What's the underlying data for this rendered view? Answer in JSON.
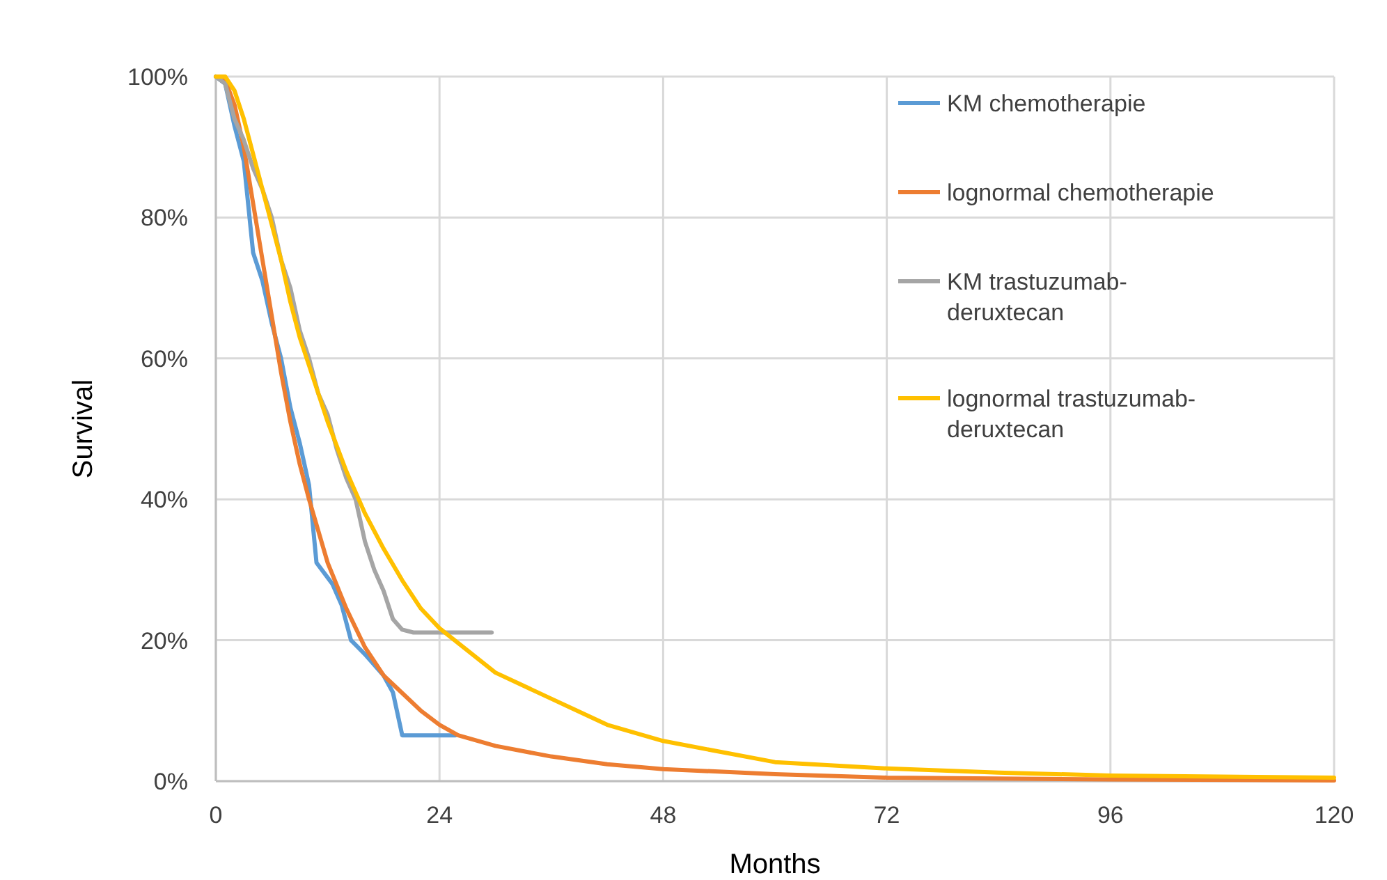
{
  "chart_data": {
    "type": "line",
    "xlabel": "Months",
    "ylabel": "Survival",
    "xlim": [
      0,
      120
    ],
    "xticks": [
      0,
      24,
      48,
      72,
      96,
      120
    ],
    "ylim": [
      0,
      100
    ],
    "yticks": [
      {
        "value": 0,
        "label": "0%"
      },
      {
        "value": 20,
        "label": "20%"
      },
      {
        "value": 40,
        "label": "40%"
      },
      {
        "value": 60,
        "label": "60%"
      },
      {
        "value": 80,
        "label": "80%"
      },
      {
        "value": 100,
        "label": "100%"
      }
    ],
    "grid": true,
    "legend": "top right",
    "marker": "none",
    "line_style": "solid",
    "series": [
      {
        "name": "KM chemotherapie",
        "color": "#5b9bd5",
        "x": [
          0,
          1,
          2,
          3,
          4,
          5,
          6,
          7,
          8,
          9,
          10,
          10.8,
          12.5,
          13.5,
          14.5,
          16,
          18,
          19,
          20,
          25.7
        ],
        "values": [
          100,
          99,
          93,
          88,
          75,
          71,
          65,
          60,
          53,
          48,
          42,
          31,
          28,
          25,
          20,
          18,
          15,
          12.6,
          6.5,
          6.5
        ]
      },
      {
        "name": "lognormal chemotherapie",
        "color": "#ed7d31",
        "x": [
          0,
          1,
          2,
          3,
          4,
          5,
          6,
          7,
          8,
          9,
          10,
          12,
          14,
          16,
          18,
          20,
          22,
          24,
          26,
          30,
          36,
          42,
          48,
          60,
          72,
          96,
          120
        ],
        "values": [
          100,
          99.5,
          96,
          90,
          82,
          74,
          66,
          58,
          51,
          45,
          40,
          31,
          24.5,
          19,
          15,
          12.5,
          10,
          8,
          6.5,
          5,
          3.5,
          2.4,
          1.7,
          1,
          0.5,
          0.25,
          0.1
        ]
      },
      {
        "name": "KM trastuzumab-deruxtecan",
        "color": "#a5a5a5",
        "x": [
          0,
          1,
          2,
          3,
          4,
          5,
          6,
          7,
          8,
          9,
          10,
          11,
          12,
          13,
          14,
          15,
          16,
          17,
          18,
          19,
          20,
          21.2,
          29.6
        ],
        "values": [
          100,
          99,
          94,
          91,
          87,
          84,
          80,
          74,
          70,
          64,
          60,
          55,
          52,
          47,
          43,
          40,
          34,
          30,
          27,
          23,
          21.5,
          21.1,
          21.1
        ]
      },
      {
        "name": "lognormal trastuzumab-deruxtecan",
        "color": "#ffc000",
        "x": [
          0,
          1,
          2,
          3,
          4,
          5,
          6,
          7,
          8,
          9,
          10,
          12,
          14,
          16,
          18,
          20,
          22,
          24,
          30,
          36,
          42,
          48,
          60,
          72,
          84,
          96,
          120
        ],
        "values": [
          100,
          100,
          98,
          94,
          89,
          84,
          79,
          74,
          68,
          63,
          59,
          51,
          44,
          38,
          33,
          28.5,
          24.5,
          21.7,
          15.4,
          11.7,
          8,
          5.7,
          2.7,
          1.8,
          1.2,
          0.8,
          0.5
        ]
      }
    ]
  }
}
